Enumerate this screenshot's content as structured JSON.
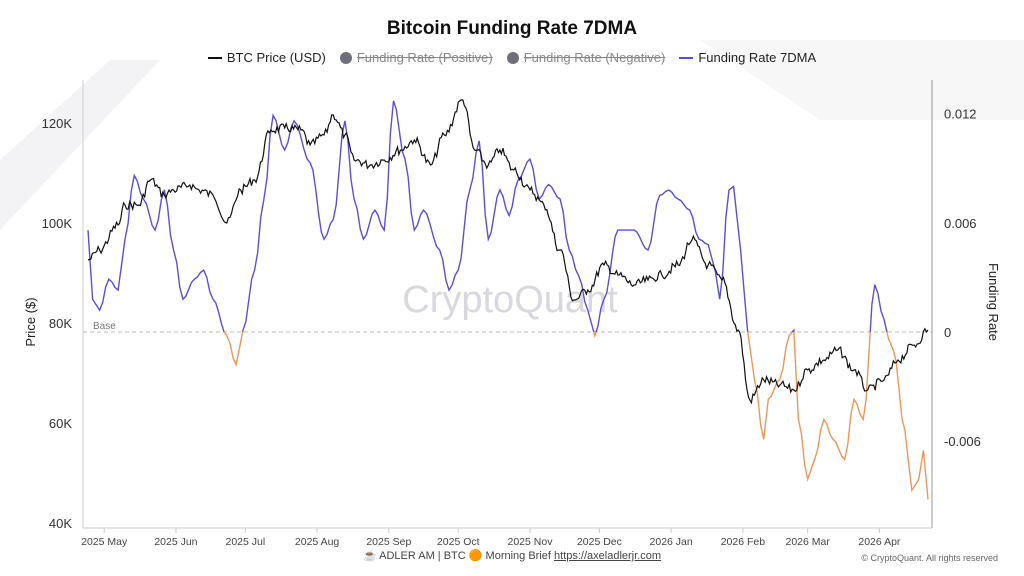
{
  "chart_data": {
    "type": "line",
    "title": "Bitcoin Funding Rate 7DMA",
    "legend": [
      {
        "name": "BTC Price (USD)",
        "color": "#111111",
        "enabled": true
      },
      {
        "name": "Funding Rate (Positive)",
        "color": "#6f6f7a",
        "enabled": false
      },
      {
        "name": "Funding Rate (Negative)",
        "color": "#6f6f7a",
        "enabled": false
      },
      {
        "name": "Funding Rate 7DMA",
        "color": "#5b4de0",
        "enabled": true
      }
    ],
    "legend_placement": "top",
    "ylabel_left": "Price ($)",
    "ylabel_right": "Funding Rate",
    "ylim_left": [
      40000,
      125000
    ],
    "ylim_right": [
      -0.0105,
      0.0137
    ],
    "yticks_left": [
      {
        "v": 40000,
        "label": "40K"
      },
      {
        "v": 60000,
        "label": "60K"
      },
      {
        "v": 80000,
        "label": "80K"
      },
      {
        "v": 100000,
        "label": "100K"
      },
      {
        "v": 120000,
        "label": "120K"
      }
    ],
    "yticks_right": [
      {
        "v": -0.006,
        "label": "-0.006"
      },
      {
        "v": 0,
        "label": "0"
      },
      {
        "v": 0.006,
        "label": "0.006"
      },
      {
        "v": 0.012,
        "label": "0.012"
      }
    ],
    "xlim": [
      "2025-04-24",
      "2026-04-22"
    ],
    "xticks": [
      {
        "d": "2025-05-01",
        "label": "2025 May"
      },
      {
        "d": "2025-06-01",
        "label": "2025 Jun"
      },
      {
        "d": "2025-07-01",
        "label": "2025 Jul"
      },
      {
        "d": "2025-08-01",
        "label": "2025 Aug"
      },
      {
        "d": "2025-09-01",
        "label": "2025 Sep"
      },
      {
        "d": "2025-10-01",
        "label": "2025 Oct"
      },
      {
        "d": "2025-11-01",
        "label": "2025 Nov"
      },
      {
        "d": "2025-12-01",
        "label": "2025 Dec"
      },
      {
        "d": "2026-01-01",
        "label": "2026 Jan"
      },
      {
        "d": "2026-02-01",
        "label": "2026 Feb"
      },
      {
        "d": "2026-03-01",
        "label": "2026 Mar"
      },
      {
        "d": "2026-04-01",
        "label": "2026 Apr"
      }
    ],
    "base_label": "Base",
    "positive_color": "#5b4de0",
    "negative_color": "#f0955a",
    "grid": false,
    "btc_price": [
      [
        "2025-04-24",
        92600
      ],
      [
        "2025-04-29",
        94600
      ],
      [
        "2025-05-07",
        99600
      ],
      [
        "2025-05-10",
        103600
      ],
      [
        "2025-05-16",
        103600
      ],
      [
        "2025-05-21",
        108600
      ],
      [
        "2025-05-27",
        105600
      ],
      [
        "2025-05-31",
        106600
      ],
      [
        "2025-06-07",
        107600
      ],
      [
        "2025-06-11",
        106600
      ],
      [
        "2025-06-17",
        105600
      ],
      [
        "2025-06-23",
        100000
      ],
      [
        "2025-06-29",
        106600
      ],
      [
        "2025-07-05",
        108600
      ],
      [
        "2025-07-12",
        118600
      ],
      [
        "2025-07-18",
        119000
      ],
      [
        "2025-07-25",
        118600
      ],
      [
        "2025-07-29",
        115600
      ],
      [
        "2025-08-04",
        117600
      ],
      [
        "2025-08-08",
        121600
      ],
      [
        "2025-08-13",
        117600
      ],
      [
        "2025-08-17",
        112600
      ],
      [
        "2025-08-24",
        111600
      ],
      [
        "2025-08-30",
        112600
      ],
      [
        "2025-09-06",
        114600
      ],
      [
        "2025-09-12",
        116600
      ],
      [
        "2025-09-19",
        111600
      ],
      [
        "2025-09-25",
        117600
      ],
      [
        "2025-10-03",
        124600
      ],
      [
        "2025-10-08",
        114600
      ],
      [
        "2025-10-14",
        111600
      ],
      [
        "2025-10-19",
        114600
      ],
      [
        "2025-10-25",
        110600
      ],
      [
        "2025-11-01",
        106600
      ],
      [
        "2025-11-07",
        103600
      ],
      [
        "2025-11-14",
        94600
      ],
      [
        "2025-11-20",
        84600
      ],
      [
        "2025-11-26",
        86600
      ],
      [
        "2025-12-03",
        91600
      ],
      [
        "2025-12-09",
        89600
      ],
      [
        "2025-12-16",
        87600
      ],
      [
        "2025-12-22",
        88600
      ],
      [
        "2025-12-28",
        89600
      ],
      [
        "2026-01-04",
        91600
      ],
      [
        "2026-01-10",
        96600
      ],
      [
        "2026-01-17",
        91600
      ],
      [
        "2026-01-23",
        88600
      ],
      [
        "2026-01-30",
        78600
      ],
      [
        "2026-02-04",
        64600
      ],
      [
        "2026-02-10",
        68600
      ],
      [
        "2026-02-17",
        67600
      ],
      [
        "2026-02-23",
        66600
      ],
      [
        "2026-03-01",
        70600
      ],
      [
        "2026-03-08",
        72600
      ],
      [
        "2026-03-14",
        74600
      ],
      [
        "2026-03-21",
        70600
      ],
      [
        "2026-03-27",
        66600
      ],
      [
        "2026-04-03",
        68600
      ],
      [
        "2026-04-09",
        72600
      ],
      [
        "2026-04-16",
        75600
      ],
      [
        "2026-04-22",
        78600
      ]
    ],
    "funding_rate_7dma": [
      [
        "2025-04-24",
        0.0056
      ],
      [
        "2025-04-26",
        0.0018
      ],
      [
        "2025-04-29",
        0.0012
      ],
      [
        "2025-05-03",
        0.0029
      ],
      [
        "2025-05-07",
        0.0023
      ],
      [
        "2025-05-10",
        0.0051
      ],
      [
        "2025-05-14",
        0.0086
      ],
      [
        "2025-05-18",
        0.0073
      ],
      [
        "2025-05-23",
        0.0056
      ],
      [
        "2025-05-27",
        0.0078
      ],
      [
        "2025-05-31",
        0.0045
      ],
      [
        "2025-06-04",
        0.0018
      ],
      [
        "2025-06-09",
        0.0029
      ],
      [
        "2025-06-13",
        0.0034
      ],
      [
        "2025-06-17",
        0.0018
      ],
      [
        "2025-06-23",
        -0.0002
      ],
      [
        "2025-06-27",
        -0.0018
      ],
      [
        "2025-06-30",
        0.0001
      ],
      [
        "2025-07-05",
        0.0034
      ],
      [
        "2025-07-09",
        0.0073
      ],
      [
        "2025-07-13",
        0.0119
      ],
      [
        "2025-07-18",
        0.01
      ],
      [
        "2025-07-22",
        0.0116
      ],
      [
        "2025-07-29",
        0.0093
      ],
      [
        "2025-08-04",
        0.0051
      ],
      [
        "2025-08-08",
        0.0062
      ],
      [
        "2025-08-13",
        0.0116
      ],
      [
        "2025-08-17",
        0.0073
      ],
      [
        "2025-08-21",
        0.0051
      ],
      [
        "2025-08-26",
        0.0067
      ],
      [
        "2025-08-30",
        0.0056
      ],
      [
        "2025-09-03",
        0.0127
      ],
      [
        "2025-09-08",
        0.0095
      ],
      [
        "2025-09-12",
        0.0056
      ],
      [
        "2025-09-16",
        0.0067
      ],
      [
        "2025-09-23",
        0.0045
      ],
      [
        "2025-09-27",
        0.0023
      ],
      [
        "2025-10-01",
        0.0034
      ],
      [
        "2025-10-06",
        0.0078
      ],
      [
        "2025-10-10",
        0.0105
      ],
      [
        "2025-10-14",
        0.0051
      ],
      [
        "2025-10-19",
        0.0078
      ],
      [
        "2025-10-23",
        0.0064
      ],
      [
        "2025-10-27",
        0.0084
      ],
      [
        "2025-11-01",
        0.0095
      ],
      [
        "2025-11-05",
        0.0073
      ],
      [
        "2025-11-09",
        0.0081
      ],
      [
        "2025-11-14",
        0.0073
      ],
      [
        "2025-11-18",
        0.0045
      ],
      [
        "2025-11-22",
        0.0031
      ],
      [
        "2025-11-26",
        0.0012
      ],
      [
        "2025-11-29",
        -0.0002
      ],
      [
        "2025-12-03",
        0.0018
      ],
      [
        "2025-12-09",
        0.0056
      ],
      [
        "2025-12-16",
        0.0056
      ],
      [
        "2025-12-22",
        0.0045
      ],
      [
        "2025-12-27",
        0.0075
      ],
      [
        "2025-12-31",
        0.0078
      ],
      [
        "2026-01-04",
        0.0073
      ],
      [
        "2026-01-09",
        0.0067
      ],
      [
        "2026-01-13",
        0.0051
      ],
      [
        "2026-01-17",
        0.0048
      ],
      [
        "2026-01-20",
        0.0034
      ],
      [
        "2026-01-22",
        0.0018
      ],
      [
        "2026-01-26",
        0.0078
      ],
      [
        "2026-01-28",
        0.008
      ],
      [
        "2026-01-31",
        0.0045
      ],
      [
        "2026-02-03",
        0.0001
      ],
      [
        "2026-02-06",
        -0.0026
      ],
      [
        "2026-02-10",
        -0.0059
      ],
      [
        "2026-02-12",
        -0.0037
      ],
      [
        "2026-02-17",
        -0.0026
      ],
      [
        "2026-02-21",
        -0.0002
      ],
      [
        "2026-02-23",
        0.0001
      ],
      [
        "2026-02-25",
        -0.0048
      ],
      [
        "2026-03-01",
        -0.0081
      ],
      [
        "2026-03-04",
        -0.007
      ],
      [
        "2026-03-08",
        -0.0048
      ],
      [
        "2026-03-12",
        -0.0059
      ],
      [
        "2026-03-17",
        -0.007
      ],
      [
        "2026-03-21",
        -0.0037
      ],
      [
        "2026-03-25",
        -0.0048
      ],
      [
        "2026-03-30",
        0.0026
      ],
      [
        "2026-04-03",
        0.0007
      ],
      [
        "2026-04-05",
        -0.0004
      ],
      [
        "2026-04-07",
        -0.001
      ],
      [
        "2026-04-12",
        -0.0054
      ],
      [
        "2026-04-15",
        -0.0087
      ],
      [
        "2026-04-18",
        -0.0081
      ],
      [
        "2026-04-20",
        -0.0065
      ],
      [
        "2026-04-22",
        -0.0092
      ]
    ]
  },
  "watermark": "CryptoQuant",
  "footer": {
    "prefix": "☕ ADLER AM | BTC",
    "emoji": "🟠",
    "text": "Morning Brief",
    "link": "https://axeladlerjr.com"
  },
  "copyright": "© CryptoQuant. All rights reserved"
}
